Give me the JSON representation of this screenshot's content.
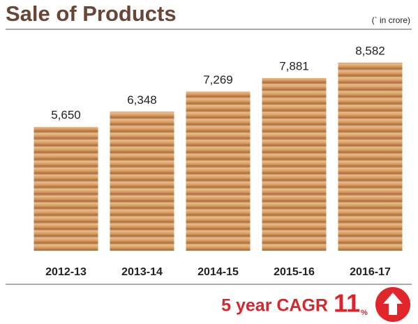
{
  "chart_data": {
    "type": "bar",
    "title": "Sale of Products",
    "unit_note": "(` in crore)",
    "categories": [
      "2012-13",
      "2013-14",
      "2014-15",
      "2015-16",
      "2016-17"
    ],
    "values": [
      5650,
      6348,
      7269,
      7881,
      8582
    ],
    "value_labels": [
      "5,650",
      "6,348",
      "7,269",
      "7,881",
      "8,582"
    ],
    "color": "#d9a066",
    "annotations": {
      "cagr_label": "5 year CAGR",
      "cagr_value": "11",
      "cagr_unit": "%"
    }
  }
}
